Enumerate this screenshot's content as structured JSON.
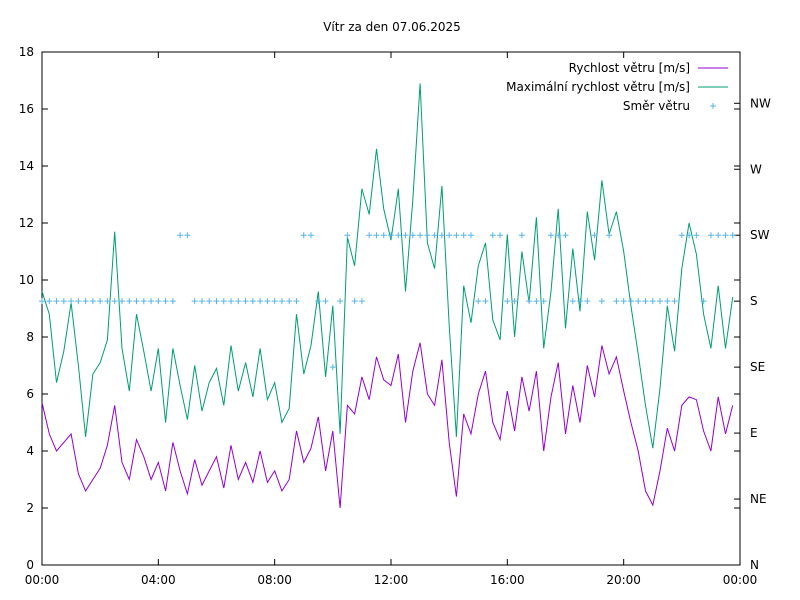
{
  "chart_data": {
    "type": "line",
    "title": "Vítr za den 07.06.2025",
    "xlabel": "",
    "ylabel": "",
    "x_ticks": [
      "00:00",
      "04:00",
      "08:00",
      "12:00",
      "16:00",
      "20:00",
      "00:00"
    ],
    "xlim_hours": [
      0,
      24
    ],
    "ylim": [
      0,
      18
    ],
    "y_ticks": [
      0,
      2,
      4,
      6,
      8,
      10,
      12,
      14,
      16,
      18
    ],
    "y2_ticks": [
      "N",
      "NE",
      "E",
      "SE",
      "S",
      "SW",
      "W",
      "NW"
    ],
    "y2_tick_values": [
      0,
      45,
      90,
      135,
      180,
      225,
      270,
      315
    ],
    "y2lim_degrees": [
      0,
      350
    ],
    "grid": false,
    "legend_placement": "top-right",
    "x_hours": [
      0,
      0.25,
      0.5,
      0.75,
      1,
      1.25,
      1.5,
      1.75,
      2,
      2.25,
      2.5,
      2.75,
      3,
      3.25,
      3.5,
      3.75,
      4,
      4.25,
      4.5,
      4.75,
      5,
      5.25,
      5.5,
      5.75,
      6,
      6.25,
      6.5,
      6.75,
      7,
      7.25,
      7.5,
      7.75,
      8,
      8.25,
      8.5,
      8.75,
      9,
      9.25,
      9.5,
      9.75,
      10,
      10.25,
      10.5,
      10.75,
      11,
      11.25,
      11.5,
      11.75,
      12,
      12.25,
      12.5,
      12.75,
      13,
      13.25,
      13.5,
      13.75,
      14,
      14.25,
      14.5,
      14.75,
      15,
      15.25,
      15.5,
      15.75,
      16,
      16.25,
      16.5,
      16.75,
      17,
      17.25,
      17.5,
      17.75,
      18,
      18.25,
      18.5,
      18.75,
      19,
      19.25,
      19.5,
      19.75,
      20,
      20.25,
      20.5,
      20.75,
      21,
      21.25,
      21.5,
      21.75,
      22,
      22.25,
      22.5,
      22.75,
      23,
      23.25,
      23.5,
      23.75
    ],
    "series": [
      {
        "name": "Rychlost větru [m/s]",
        "color": "#9400d3",
        "style": "line",
        "values": [
          5.7,
          4.6,
          4.0,
          4.3,
          4.6,
          3.2,
          2.6,
          3.0,
          3.4,
          4.2,
          5.6,
          3.6,
          3.0,
          4.4,
          3.8,
          3.0,
          3.6,
          2.6,
          4.3,
          3.3,
          2.5,
          3.7,
          2.8,
          3.3,
          3.8,
          2.7,
          4.2,
          3.0,
          3.6,
          2.9,
          4.0,
          2.9,
          3.3,
          2.6,
          3.0,
          4.7,
          3.6,
          4.1,
          5.2,
          3.3,
          4.7,
          2.0,
          5.6,
          5.3,
          6.6,
          5.8,
          7.3,
          6.5,
          6.3,
          7.4,
          5.0,
          6.8,
          7.8,
          6.0,
          5.6,
          7.2,
          4.3,
          2.4,
          5.3,
          4.6,
          6.0,
          6.8,
          5.0,
          4.4,
          6.1,
          4.7,
          6.6,
          5.4,
          6.8,
          4.0,
          5.9,
          7.1,
          4.6,
          6.3,
          5.0,
          7.0,
          5.9,
          7.7,
          6.7,
          7.3,
          6.1,
          5.0,
          4.0,
          2.6,
          2.1,
          3.3,
          4.8,
          4.0,
          5.6,
          5.9,
          5.8,
          4.7,
          4.0,
          5.9,
          4.6,
          5.6
        ]
      },
      {
        "name": "Maximální rychlost větru [m/s]",
        "color": "#009e73",
        "style": "line",
        "values": [
          9.6,
          8.8,
          6.4,
          7.5,
          9.2,
          7.0,
          4.5,
          6.7,
          7.1,
          7.9,
          11.7,
          7.6,
          6.1,
          8.8,
          7.5,
          6.1,
          7.6,
          5.0,
          7.6,
          6.3,
          5.1,
          7.0,
          5.4,
          6.4,
          6.9,
          5.6,
          7.7,
          6.1,
          7.1,
          5.9,
          7.6,
          5.8,
          6.4,
          5.0,
          5.5,
          8.8,
          6.7,
          7.7,
          9.6,
          6.6,
          9.1,
          4.6,
          11.5,
          10.5,
          13.2,
          12.3,
          14.6,
          12.5,
          11.4,
          13.2,
          9.6,
          12.8,
          16.9,
          11.3,
          10.4,
          13.3,
          8.4,
          4.5,
          9.8,
          8.5,
          10.5,
          11.3,
          8.6,
          7.9,
          11.6,
          8.0,
          11.0,
          9.2,
          12.2,
          7.6,
          9.6,
          12.5,
          8.3,
          11.1,
          8.9,
          12.4,
          10.7,
          13.5,
          11.6,
          12.4,
          11.0,
          9.1,
          7.4,
          5.6,
          4.1,
          6.2,
          9.1,
          7.5,
          10.4,
          12.0,
          10.9,
          8.8,
          7.6,
          9.8,
          7.6,
          9.4
        ]
      },
      {
        "name": "Směr větru",
        "color": "#56b4e9",
        "style": "points",
        "axis": "y2",
        "values": [
          180,
          180,
          180,
          180,
          180,
          180,
          180,
          180,
          180,
          180,
          180,
          180,
          180,
          180,
          180,
          180,
          180,
          180,
          180,
          225,
          225,
          180,
          180,
          180,
          180,
          180,
          180,
          180,
          180,
          180,
          180,
          180,
          180,
          180,
          180,
          180,
          225,
          225,
          180,
          180,
          135,
          180,
          225,
          180,
          180,
          225,
          225,
          225,
          225,
          225,
          225,
          225,
          225,
          225,
          225,
          225,
          225,
          225,
          225,
          225,
          180,
          180,
          225,
          225,
          180,
          180,
          225,
          180,
          180,
          180,
          225,
          225,
          225,
          180,
          180,
          180,
          225,
          180,
          225,
          180,
          180,
          180,
          180,
          180,
          180,
          180,
          180,
          180,
          225,
          225,
          225,
          180,
          225,
          225,
          225,
          225
        ]
      }
    ]
  }
}
